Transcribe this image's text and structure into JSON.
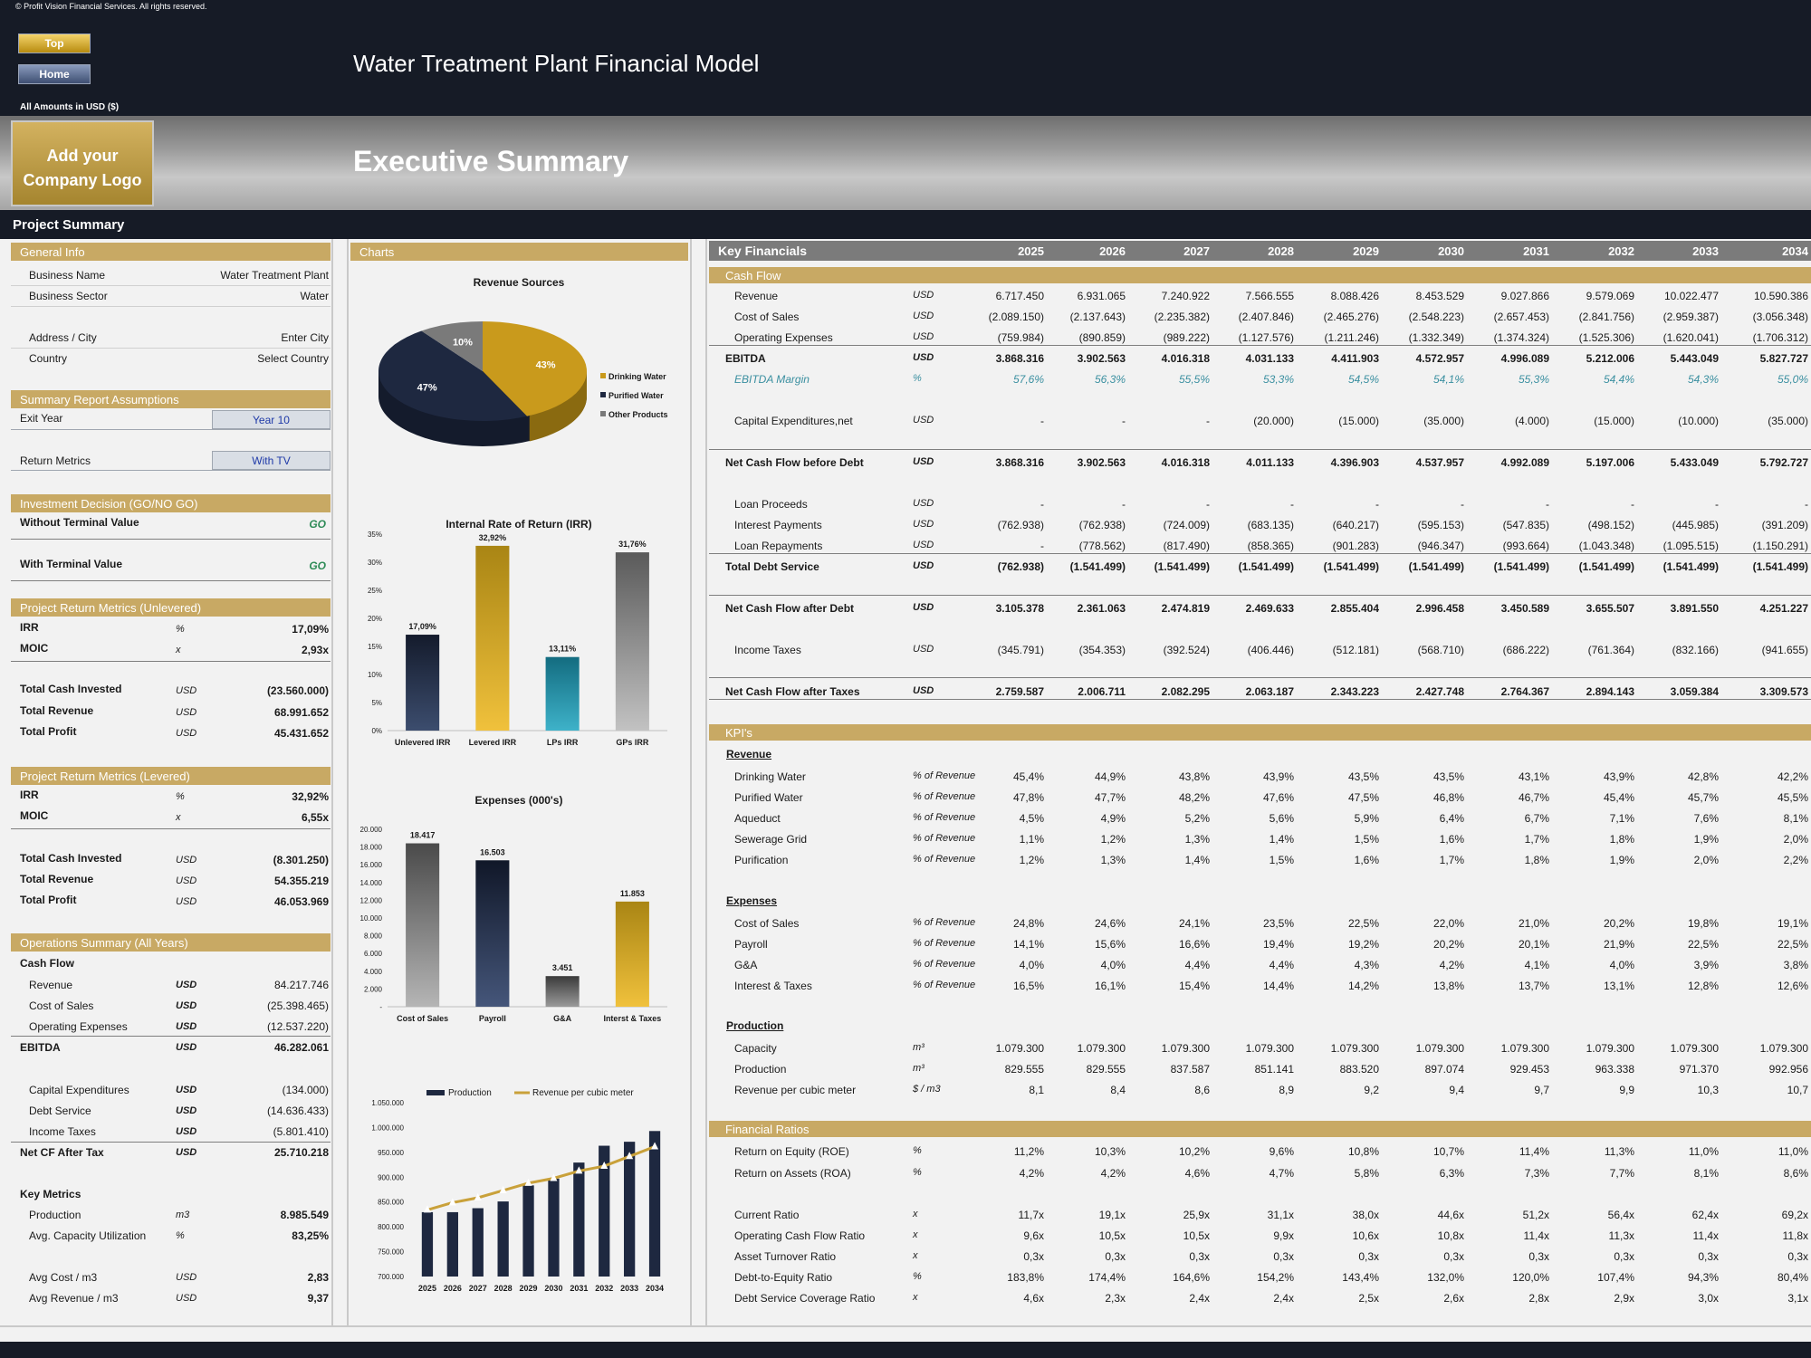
{
  "copyright": "© Profit Vision Financial Services. All rights reserved.",
  "nav": {
    "top": "Top",
    "home": "Home"
  },
  "model_title": "Water Treatment Plant Financial Model",
  "amounts": "All Amounts in  USD ($)",
  "logo": [
    "Add your",
    "Company Logo"
  ],
  "exec_title": "Executive Summary",
  "project_summary": "Project Summary",
  "general_info": {
    "title": "General Info",
    "rows": [
      [
        "Business Name",
        "Water Treatment Plant"
      ],
      [
        "Business Sector",
        "Water"
      ],
      [
        "Address / City",
        "Enter City"
      ],
      [
        "Country",
        "Select Country"
      ]
    ]
  },
  "assumptions": {
    "title": "Summary  Report Assumptions",
    "exit_year_label": "Exit Year",
    "exit_year": "Year 10",
    "return_metrics_label": "Return Metrics",
    "return_metrics": "With TV"
  },
  "decision": {
    "title": "Investment Decision (GO/NO GO)",
    "rows": [
      [
        "Without Terminal Value",
        "GO"
      ],
      [
        "With Terminal Value",
        "GO"
      ]
    ]
  },
  "unlevered": {
    "title": "Project Return Metrics (Unlevered)",
    "rows": [
      [
        "IRR",
        "%",
        "17,09%"
      ],
      [
        "MOIC",
        "x",
        "2,93x"
      ],
      [
        "Total Cash Invested",
        "USD",
        "(23.560.000)"
      ],
      [
        "Total Revenue",
        "USD",
        "68.991.652"
      ],
      [
        "Total Profit",
        "USD",
        "45.431.652"
      ]
    ]
  },
  "levered": {
    "title": "Project Return Metrics (Levered)",
    "rows": [
      [
        "IRR",
        "%",
        "32,92%"
      ],
      [
        "MOIC",
        "x",
        "6,55x"
      ],
      [
        "Total Cash Invested",
        "USD",
        "(8.301.250)"
      ],
      [
        "Total Revenue",
        "USD",
        "54.355.219"
      ],
      [
        "Total Profit",
        "USD",
        "46.053.969"
      ]
    ]
  },
  "operations": {
    "title": "Operations Summary (All Years)",
    "cash_flow_label": "Cash Flow",
    "rows": [
      [
        "Revenue",
        "USD",
        "84.217.746"
      ],
      [
        "Cost of Sales",
        "USD",
        "(25.398.465)"
      ],
      [
        "Operating Expenses",
        "USD",
        "(12.537.220)"
      ],
      [
        "EBITDA",
        "USD",
        "46.282.061"
      ],
      [
        "Capital Expenditures",
        "USD",
        "(134.000)"
      ],
      [
        "Debt Service",
        "USD",
        "(14.636.433)"
      ],
      [
        "Income Taxes",
        "USD",
        "(5.801.410)"
      ],
      [
        "Net CF After Tax",
        "USD",
        "25.710.218"
      ]
    ],
    "key_metrics_label": "Key Metrics",
    "metrics": [
      [
        "Production",
        "m3",
        "8.985.549"
      ],
      [
        "Avg. Capacity Utilization",
        "%",
        "83,25%"
      ],
      [
        "Avg Cost / m3",
        "USD",
        "2,83"
      ],
      [
        "Avg Revenue / m3",
        "USD",
        "9,37"
      ]
    ]
  },
  "charts_title": "Charts",
  "chart_data": [
    {
      "type": "pie",
      "title": "Revenue Sources",
      "categories": [
        "Drinking Water",
        "Purified Water",
        "Other Products"
      ],
      "values": [
        43,
        47,
        10
      ],
      "labels": [
        "43%",
        "47%",
        "10%"
      ],
      "colors": [
        "#c99a1c",
        "#1e2840",
        "#7a7a7a"
      ]
    },
    {
      "type": "bar",
      "title": "Internal Rate of Return (IRR)",
      "categories": [
        "Unlevered IRR",
        "Levered IRR",
        "LPs IRR",
        "GPs IRR"
      ],
      "values": [
        17.09,
        32.92,
        13.11,
        31.76
      ],
      "labels": [
        "17,09%",
        "32,92%",
        "13,11%",
        "31,76%"
      ],
      "ylim": [
        0,
        35
      ],
      "yticks": [
        "0%",
        "5%",
        "10%",
        "15%",
        "20%",
        "25%",
        "30%",
        "35%"
      ]
    },
    {
      "type": "bar",
      "title": "Expenses (000's)",
      "categories": [
        "Cost of Sales",
        "Payroll",
        "G&A",
        "Interst & Taxes"
      ],
      "values": [
        18417,
        16503,
        3451,
        11853
      ],
      "labels": [
        "18.417",
        "16.503",
        "3.451",
        "11.853"
      ],
      "ylim": [
        0,
        20000
      ],
      "yticks": [
        "-",
        "2.000",
        "4.000",
        "6.000",
        "8.000",
        "10.000",
        "12.000",
        "14.000",
        "16.000",
        "18.000",
        "20.000"
      ]
    },
    {
      "type": "bar",
      "title": "",
      "categories": [
        "2025",
        "2026",
        "2027",
        "2028",
        "2029",
        "2030",
        "2031",
        "2032",
        "2033",
        "2034"
      ],
      "series": [
        {
          "name": "Production",
          "values": [
            829555,
            829555,
            837587,
            851141,
            883520,
            897074,
            929453,
            963338,
            971370,
            992956
          ]
        },
        {
          "name": "Revenue per cubic meter",
          "values": [
            8.1,
            8.4,
            8.6,
            8.9,
            9.2,
            9.4,
            9.7,
            9.9,
            10.3,
            10.7
          ]
        }
      ],
      "ylim": [
        700000,
        1050000
      ],
      "yticks": [
        "700.000",
        "750.000",
        "800.000",
        "850.000",
        "900.000",
        "950.000",
        "1.000.000",
        "1.050.000"
      ]
    }
  ],
  "key_financials": {
    "title": "Key Financials",
    "years": [
      "2025",
      "2026",
      "2027",
      "2028",
      "2029",
      "2030",
      "2031",
      "2032",
      "2033",
      "2034"
    ],
    "cash_flow_title": "Cash Flow",
    "rows": [
      {
        "label": "Revenue",
        "unit": "USD",
        "v": [
          "6.717.450",
          "6.931.065",
          "7.240.922",
          "7.566.555",
          "8.088.426",
          "8.453.529",
          "9.027.866",
          "9.579.069",
          "10.022.477",
          "10.590.386"
        ]
      },
      {
        "label": "Cost of Sales",
        "unit": "USD",
        "v": [
          "(2.089.150)",
          "(2.137.643)",
          "(2.235.382)",
          "(2.407.846)",
          "(2.465.276)",
          "(2.548.223)",
          "(2.657.453)",
          "(2.841.756)",
          "(2.959.387)",
          "(3.056.348)"
        ]
      },
      {
        "label": "Operating Expenses",
        "unit": "USD",
        "v": [
          "(759.984)",
          "(890.859)",
          "(989.222)",
          "(1.127.576)",
          "(1.211.246)",
          "(1.332.349)",
          "(1.374.324)",
          "(1.525.306)",
          "(1.620.041)",
          "(1.706.312)"
        ]
      },
      {
        "label": "EBITDA",
        "unit": "USD",
        "v": [
          "3.868.316",
          "3.902.563",
          "4.016.318",
          "4.031.133",
          "4.411.903",
          "4.572.957",
          "4.996.089",
          "5.212.006",
          "5.443.049",
          "5.827.727"
        ]
      },
      {
        "label": "EBITDA Margin",
        "unit": "%",
        "v": [
          "57,6%",
          "56,3%",
          "55,5%",
          "53,3%",
          "54,5%",
          "54,1%",
          "55,3%",
          "54,4%",
          "54,3%",
          "55,0%"
        ]
      },
      {
        "label": "Capital Expenditures,net",
        "unit": "USD",
        "v": [
          "-",
          "-",
          "-",
          "(20.000)",
          "(15.000)",
          "(35.000)",
          "(4.000)",
          "(15.000)",
          "(10.000)",
          "(35.000)"
        ]
      },
      {
        "label": "Net Cash Flow before Debt",
        "unit": "USD",
        "v": [
          "3.868.316",
          "3.902.563",
          "4.016.318",
          "4.011.133",
          "4.396.903",
          "4.537.957",
          "4.992.089",
          "5.197.006",
          "5.433.049",
          "5.792.727"
        ]
      },
      {
        "label": "Loan Proceeds",
        "unit": "USD",
        "v": [
          "-",
          "-",
          "-",
          "-",
          "-",
          "-",
          "-",
          "-",
          "-",
          "-"
        ]
      },
      {
        "label": "Interest Payments",
        "unit": "USD",
        "v": [
          "(762.938)",
          "(762.938)",
          "(724.009)",
          "(683.135)",
          "(640.217)",
          "(595.153)",
          "(547.835)",
          "(498.152)",
          "(445.985)",
          "(391.209)"
        ]
      },
      {
        "label": "Loan Repayments",
        "unit": "USD",
        "v": [
          "-",
          "(778.562)",
          "(817.490)",
          "(858.365)",
          "(901.283)",
          "(946.347)",
          "(993.664)",
          "(1.043.348)",
          "(1.095.515)",
          "(1.150.291)"
        ]
      },
      {
        "label": "Total Debt Service",
        "unit": "USD",
        "v": [
          "(762.938)",
          "(1.541.499)",
          "(1.541.499)",
          "(1.541.499)",
          "(1.541.499)",
          "(1.541.499)",
          "(1.541.499)",
          "(1.541.499)",
          "(1.541.499)",
          "(1.541.499)"
        ]
      },
      {
        "label": "Net Cash Flow after Debt",
        "unit": "USD",
        "v": [
          "3.105.378",
          "2.361.063",
          "2.474.819",
          "2.469.633",
          "2.855.404",
          "2.996.458",
          "3.450.589",
          "3.655.507",
          "3.891.550",
          "4.251.227"
        ]
      },
      {
        "label": "Income Taxes",
        "unit": "USD",
        "v": [
          "(345.791)",
          "(354.353)",
          "(392.524)",
          "(406.446)",
          "(512.181)",
          "(568.710)",
          "(686.222)",
          "(761.364)",
          "(832.166)",
          "(941.655)"
        ]
      },
      {
        "label": "Net Cash Flow after Taxes",
        "unit": "USD",
        "v": [
          "2.759.587",
          "2.006.711",
          "2.082.295",
          "2.063.187",
          "2.343.223",
          "2.427.748",
          "2.764.367",
          "2.894.143",
          "3.059.384",
          "3.309.573"
        ]
      }
    ],
    "kpis_title": "KPI's",
    "kpi_revenue_label": "Revenue",
    "kpi_revenue": [
      {
        "label": "Drinking Water",
        "unit": "% of Revenue",
        "v": [
          "45,4%",
          "44,9%",
          "43,8%",
          "43,9%",
          "43,5%",
          "43,5%",
          "43,1%",
          "43,9%",
          "42,8%",
          "42,2%"
        ]
      },
      {
        "label": "Purified Water",
        "unit": "% of Revenue",
        "v": [
          "47,8%",
          "47,7%",
          "48,2%",
          "47,6%",
          "47,5%",
          "46,8%",
          "46,7%",
          "45,4%",
          "45,7%",
          "45,5%"
        ]
      },
      {
        "label": "Aqueduct",
        "unit": "% of Revenue",
        "v": [
          "4,5%",
          "4,9%",
          "5,2%",
          "5,6%",
          "5,9%",
          "6,4%",
          "6,7%",
          "7,1%",
          "7,6%",
          "8,1%"
        ]
      },
      {
        "label": "Sewerage Grid",
        "unit": "% of Revenue",
        "v": [
          "1,1%",
          "1,2%",
          "1,3%",
          "1,4%",
          "1,5%",
          "1,6%",
          "1,7%",
          "1,8%",
          "1,9%",
          "2,0%"
        ]
      },
      {
        "label": "Purification",
        "unit": "% of Revenue",
        "v": [
          "1,2%",
          "1,3%",
          "1,4%",
          "1,5%",
          "1,6%",
          "1,7%",
          "1,8%",
          "1,9%",
          "2,0%",
          "2,2%"
        ]
      }
    ],
    "kpi_expenses_label": "Expenses",
    "kpi_expenses": [
      {
        "label": "Cost of Sales",
        "unit": "% of Revenue",
        "v": [
          "24,8%",
          "24,6%",
          "24,1%",
          "23,5%",
          "22,5%",
          "22,0%",
          "21,0%",
          "20,2%",
          "19,8%",
          "19,1%"
        ]
      },
      {
        "label": "Payroll",
        "unit": "% of Revenue",
        "v": [
          "14,1%",
          "15,6%",
          "16,6%",
          "19,4%",
          "19,2%",
          "20,2%",
          "20,1%",
          "21,9%",
          "22,5%",
          "22,5%"
        ]
      },
      {
        "label": "G&A",
        "unit": "% of Revenue",
        "v": [
          "4,0%",
          "4,0%",
          "4,4%",
          "4,4%",
          "4,3%",
          "4,2%",
          "4,1%",
          "4,0%",
          "3,9%",
          "3,8%"
        ]
      },
      {
        "label": "Interest & Taxes",
        "unit": "% of Revenue",
        "v": [
          "16,5%",
          "16,1%",
          "15,4%",
          "14,4%",
          "14,2%",
          "13,8%",
          "13,7%",
          "13,1%",
          "12,8%",
          "12,6%"
        ]
      }
    ],
    "kpi_production_label": "Production",
    "kpi_production": [
      {
        "label": "Capacity",
        "unit": "m³",
        "v": [
          "1.079.300",
          "1.079.300",
          "1.079.300",
          "1.079.300",
          "1.079.300",
          "1.079.300",
          "1.079.300",
          "1.079.300",
          "1.079.300",
          "1.079.300"
        ]
      },
      {
        "label": "Production",
        "unit": "m³",
        "v": [
          "829.555",
          "829.555",
          "837.587",
          "851.141",
          "883.520",
          "897.074",
          "929.453",
          "963.338",
          "971.370",
          "992.956"
        ]
      },
      {
        "label": "Revenue per cubic meter",
        "unit": "$ / m3",
        "v": [
          "8,1",
          "8,4",
          "8,6",
          "8,9",
          "9,2",
          "9,4",
          "9,7",
          "9,9",
          "10,3",
          "10,7"
        ]
      }
    ],
    "ratios_title": "Financial Ratios",
    "ratios": [
      {
        "label": "Return on Equity (ROE)",
        "unit": "%",
        "v": [
          "11,2%",
          "10,3%",
          "10,2%",
          "9,6%",
          "10,8%",
          "10,7%",
          "11,4%",
          "11,3%",
          "11,0%",
          "11,0%"
        ]
      },
      {
        "label": "Return on Assets (ROA)",
        "unit": "%",
        "v": [
          "4,2%",
          "4,2%",
          "4,6%",
          "4,7%",
          "5,8%",
          "6,3%",
          "7,3%",
          "7,7%",
          "8,1%",
          "8,6%"
        ]
      },
      {
        "label": "Current Ratio",
        "unit": "x",
        "v": [
          "11,7x",
          "19,1x",
          "25,9x",
          "31,1x",
          "38,0x",
          "44,6x",
          "51,2x",
          "56,4x",
          "62,4x",
          "69,2x"
        ]
      },
      {
        "label": "Operating Cash Flow Ratio",
        "unit": "x",
        "v": [
          "9,6x",
          "10,5x",
          "10,5x",
          "9,9x",
          "10,6x",
          "10,8x",
          "11,4x",
          "11,3x",
          "11,4x",
          "11,8x"
        ]
      },
      {
        "label": "Asset Turnover Ratio",
        "unit": "x",
        "v": [
          "0,3x",
          "0,3x",
          "0,3x",
          "0,3x",
          "0,3x",
          "0,3x",
          "0,3x",
          "0,3x",
          "0,3x",
          "0,3x"
        ]
      },
      {
        "label": "Debt-to-Equity Ratio",
        "unit": "%",
        "v": [
          "183,8%",
          "174,4%",
          "164,6%",
          "154,2%",
          "143,4%",
          "132,0%",
          "120,0%",
          "107,4%",
          "94,3%",
          "80,4%"
        ]
      },
      {
        "label": "Debt Service Coverage Ratio",
        "unit": "x",
        "v": [
          "4,6x",
          "2,3x",
          "2,4x",
          "2,4x",
          "2,5x",
          "2,6x",
          "2,8x",
          "2,9x",
          "3,0x",
          "3,1x"
        ]
      }
    ]
  }
}
